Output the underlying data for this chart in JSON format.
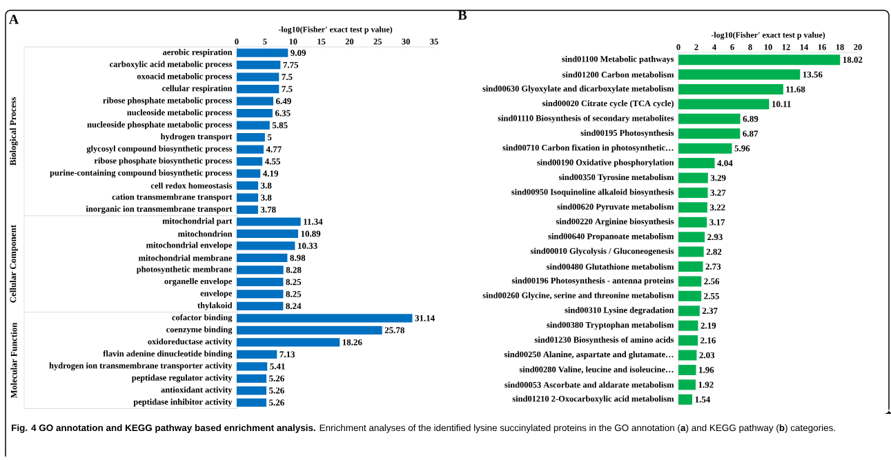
{
  "chart_data": [
    {
      "type": "bar",
      "orientation": "horizontal",
      "title": "A",
      "xlabel": "-log10(Fisher' exact test p value)",
      "color": "#0070c0",
      "data_labels": true,
      "categories": [
        "aerobic respiration",
        "carboxylic acid metabolic process",
        "oxoacid metabolic process",
        "cellular respiration",
        "ribose phosphate metabolic process",
        "nucleoside metabolic process",
        "nucleoside phosphate metabolic process",
        "hydrogen transport",
        "glycosyl compound biosynthetic process",
        "ribose phosphate biosynthetic process",
        "purine-containing compound biosynthetic process",
        "cell redox homeostasis",
        "cation transmembrane transport",
        "inorganic ion transmembrane transport",
        "mitochondrial part",
        "mitochondrion",
        "mitochondrial envelope",
        "mitochondrial membrane",
        "photosynthetic membrane",
        "organelle envelope",
        "envelope",
        "thylakoid",
        "cofactor binding",
        "coenzyme binding",
        "oxidoreductase activity",
        "flavin adenine dinucleotide binding",
        "hydrogen ion transmembrane transporter activity",
        "peptidase regulator activity",
        "antioxidant activity",
        "peptidase inhibitor activity"
      ],
      "values": [
        9.09,
        7.75,
        7.5,
        7.5,
        6.49,
        6.35,
        5.85,
        5,
        4.77,
        4.55,
        4.19,
        3.8,
        3.8,
        3.78,
        11.34,
        10.89,
        10.33,
        8.98,
        8.28,
        8.25,
        8.25,
        8.24,
        31.14,
        25.78,
        18.26,
        7.13,
        5.41,
        5.26,
        5.26,
        5.26
      ],
      "xlim": [
        0,
        35
      ],
      "xticks": [
        0,
        5,
        10,
        15,
        20,
        25,
        30,
        35
      ],
      "annotations": [
        "Biological Process",
        "Cellular Component",
        "Molecular Function",
        "**Fig. 4 GO annotation and KEGG pathway based enrichment analysis.** Enrichment analyses of the identified lysine succinylated proteins in the GO annotation (**a**) and KEGG pathway (**b**) categories."
      ]
    },
    {
      "type": "bar",
      "orientation": "horizontal",
      "title": "B",
      "xlabel": "-log10(Fisher' exact test p value)",
      "color": "#00b050",
      "data_labels": true,
      "categories": [
        "sind01100 Metabolic pathways",
        "sind01200 Carbon metabolism",
        "sind00630 Glyoxylate and dicarboxylate metabolism",
        "sind00020 Citrate cycle (TCA cycle)",
        "sind01110 Biosynthesis of secondary metabolites",
        "sind00195 Photosynthesis",
        "sind00710 Carbon fixation in photosynthetic…",
        "sind00190 Oxidative phosphorylation",
        "sind00350 Tyrosine metabolism",
        "sind00950 Isoquinoline alkaloid biosynthesis",
        "sind00620 Pyruvate metabolism",
        "sind00220 Arginine biosynthesis",
        "sind00640 Propanoate metabolism",
        "sind00010 Glycolysis / Gluconeogenesis",
        "sind00480 Glutathione metabolism",
        "sind00196 Photosynthesis - antenna proteins",
        "sind00260 Glycine, serine and threonine metabolism",
        "sind00310 Lysine degradation",
        "sind00380 Tryptophan metabolism",
        "sind01230 Biosynthesis of amino acids",
        "sind00250 Alanine, aspartate and glutamate…",
        "sind00280 Valine, leucine and isoleucine…",
        "sind00053 Ascorbate and aldarate metabolism",
        "sind01210 2-Oxocarboxylic acid metabolism"
      ],
      "values": [
        18.02,
        13.56,
        11.68,
        10.11,
        6.89,
        6.87,
        5.96,
        4.04,
        3.29,
        3.27,
        3.22,
        3.17,
        2.93,
        2.82,
        2.73,
        2.56,
        2.55,
        2.37,
        2.19,
        2.16,
        2.03,
        1.96,
        1.92,
        1.54
      ],
      "xlim": [
        0,
        20
      ],
      "xticks": [
        0,
        2,
        4,
        6,
        8,
        10,
        12,
        14,
        16,
        18,
        20
      ]
    }
  ]
}
